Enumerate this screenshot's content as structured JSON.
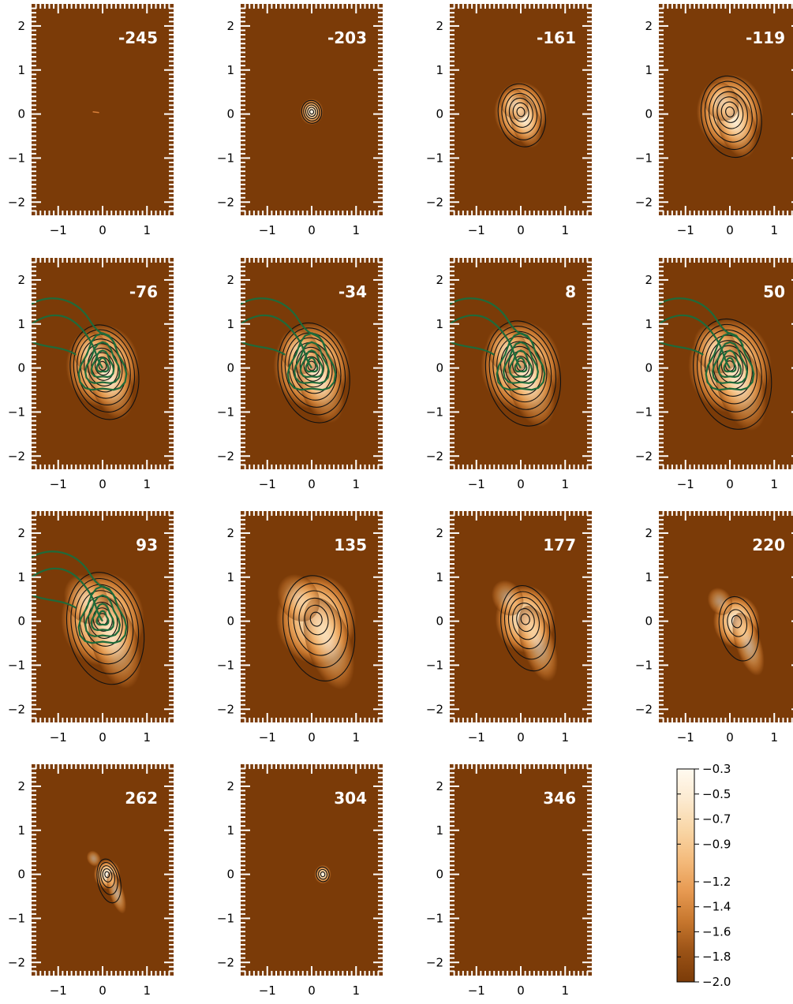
{
  "chart_data": {
    "type": "heatmap",
    "description_of_layout": "channel maps",
    "xlim": [
      -1.6,
      1.6
    ],
    "ylim": [
      -2.3,
      2.5
    ],
    "xticks": [
      "-1",
      "0",
      "1"
    ],
    "yticks": [
      "2",
      "1",
      "0",
      "-1",
      "-2"
    ],
    "panels": [
      {
        "label": "-245",
        "core": [
          -0.15,
          0.05
        ],
        "extent": 0.0,
        "elong": 0.0,
        "contours": 0,
        "green": false
      },
      {
        "label": "-203",
        "core": [
          0.0,
          0.05
        ],
        "extent": 0.35,
        "elong": 0.0,
        "contours": 5,
        "green": false
      },
      {
        "label": "-161",
        "core": [
          0.0,
          0.05
        ],
        "extent": 0.8,
        "elong": 0.6,
        "contours": 6,
        "green": false
      },
      {
        "label": "-119",
        "core": [
          0.0,
          0.05
        ],
        "extent": 1.0,
        "elong": 0.8,
        "contours": 7,
        "green": false
      },
      {
        "label": "-76",
        "core": [
          0.0,
          0.05
        ],
        "extent": 1.1,
        "elong": 1.0,
        "contours": 9,
        "green": true
      },
      {
        "label": "-34",
        "core": [
          0.0,
          0.05
        ],
        "extent": 1.15,
        "elong": 1.1,
        "contours": 9,
        "green": true
      },
      {
        "label": "8",
        "core": [
          0.0,
          0.05
        ],
        "extent": 1.2,
        "elong": 1.2,
        "contours": 9,
        "green": true
      },
      {
        "label": "50",
        "core": [
          0.0,
          0.05
        ],
        "extent": 1.25,
        "elong": 1.3,
        "contours": 9,
        "green": true
      },
      {
        "label": "93",
        "core": [
          0.0,
          0.05
        ],
        "extent": 1.25,
        "elong": 1.5,
        "contours": 8,
        "green": true
      },
      {
        "label": "135",
        "core": [
          0.1,
          0.05
        ],
        "extent": 1.2,
        "elong": 1.6,
        "contours": 6,
        "green": false
      },
      {
        "label": "177",
        "core": [
          0.1,
          0.05
        ],
        "extent": 0.9,
        "elong": 1.6,
        "contours": 6,
        "green": false
      },
      {
        "label": "220",
        "core": [
          0.15,
          0.0
        ],
        "extent": 0.7,
        "elong": 1.5,
        "contours": 4,
        "green": false
      },
      {
        "label": "262",
        "core": [
          0.1,
          0.0
        ],
        "extent": 0.4,
        "elong": 1.2,
        "contours": 5,
        "green": false
      },
      {
        "label": "304",
        "core": [
          0.25,
          0.0
        ],
        "extent": 0.25,
        "elong": 0.0,
        "contours": 3,
        "green": false
      },
      {
        "label": "346",
        "core": [
          0.0,
          0.0
        ],
        "extent": 0.0,
        "elong": 0.0,
        "contours": 0,
        "green": false
      }
    ],
    "colorbar": {
      "labels": [
        "-0.3",
        "-0.5",
        "-0.7",
        "-0.9",
        "-1.2",
        "-1.4",
        "-1.6",
        "-1.8",
        "-2.0"
      ],
      "range": [
        -2.0,
        -0.3
      ],
      "colors": [
        "#7b3b08",
        "#9a5216",
        "#c7772e",
        "#e79a52",
        "#f4bb7c",
        "#f9d6a6",
        "#fcead0",
        "#fffaf0"
      ]
    },
    "colors": {
      "background": "#7b3b08",
      "contour": "#111111",
      "overlay": "#1f6a3a",
      "label_text": "#ffffff",
      "tick": "#ffffff"
    }
  }
}
